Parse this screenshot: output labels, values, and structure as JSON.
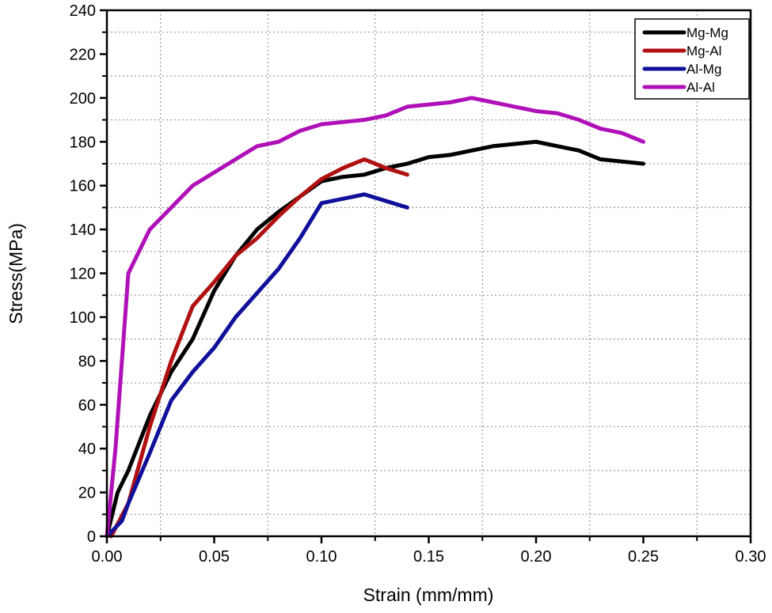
{
  "chart_data": {
    "type": "line",
    "title": "",
    "xlabel": "Strain (mm/mm)",
    "ylabel": "Stress(MPa)",
    "xlim": [
      0,
      0.3
    ],
    "ylim": [
      0,
      240
    ],
    "x_ticks": [
      "0.00",
      "0.05",
      "0.10",
      "0.15",
      "0.20",
      "0.25",
      "0.30"
    ],
    "y_ticks": [
      "0",
      "20",
      "40",
      "60",
      "80",
      "100",
      "120",
      "140",
      "160",
      "180",
      "200",
      "220",
      "240"
    ],
    "grid": "dotted, at minor ticks",
    "legend_position": "top-right",
    "series": [
      {
        "name": "Mg-Mg",
        "color": "#000000",
        "points": [
          [
            0,
            0
          ],
          [
            0.005,
            20
          ],
          [
            0.01,
            30
          ],
          [
            0.02,
            55
          ],
          [
            0.03,
            75
          ],
          [
            0.04,
            90
          ],
          [
            0.05,
            112
          ],
          [
            0.06,
            128
          ],
          [
            0.07,
            140
          ],
          [
            0.08,
            148
          ],
          [
            0.09,
            155
          ],
          [
            0.1,
            162
          ],
          [
            0.11,
            164
          ],
          [
            0.12,
            165
          ],
          [
            0.13,
            168
          ],
          [
            0.14,
            170
          ],
          [
            0.15,
            173
          ],
          [
            0.16,
            174
          ],
          [
            0.17,
            176
          ],
          [
            0.18,
            178
          ],
          [
            0.19,
            179
          ],
          [
            0.2,
            180
          ],
          [
            0.21,
            178
          ],
          [
            0.22,
            176
          ],
          [
            0.23,
            172
          ],
          [
            0.24,
            171
          ],
          [
            0.25,
            170
          ]
        ]
      },
      {
        "name": "Mg-Al",
        "color": "#b01010",
        "points": [
          [
            0.002,
            0
          ],
          [
            0.01,
            15
          ],
          [
            0.02,
            50
          ],
          [
            0.03,
            80
          ],
          [
            0.04,
            105
          ],
          [
            0.05,
            116
          ],
          [
            0.06,
            128
          ],
          [
            0.07,
            136
          ],
          [
            0.08,
            146
          ],
          [
            0.09,
            155
          ],
          [
            0.1,
            163
          ],
          [
            0.11,
            168
          ],
          [
            0.12,
            172
          ],
          [
            0.13,
            168
          ],
          [
            0.14,
            165
          ]
        ]
      },
      {
        "name": "Al-Mg",
        "color": "#10109a",
        "points": [
          [
            0,
            0
          ],
          [
            0.005,
            5
          ],
          [
            0.007,
            7
          ],
          [
            0.01,
            15
          ],
          [
            0.02,
            38
          ],
          [
            0.03,
            62
          ],
          [
            0.04,
            75
          ],
          [
            0.05,
            86
          ],
          [
            0.06,
            100
          ],
          [
            0.07,
            111
          ],
          [
            0.08,
            122
          ],
          [
            0.09,
            136
          ],
          [
            0.1,
            152
          ],
          [
            0.11,
            154
          ],
          [
            0.12,
            156
          ],
          [
            0.13,
            153
          ],
          [
            0.14,
            150
          ]
        ]
      },
      {
        "name": "Al-Al",
        "color": "#b010b8",
        "points": [
          [
            0,
            0
          ],
          [
            0.004,
            40
          ],
          [
            0.007,
            80
          ],
          [
            0.01,
            120
          ],
          [
            0.02,
            140
          ],
          [
            0.03,
            150
          ],
          [
            0.04,
            160
          ],
          [
            0.05,
            166
          ],
          [
            0.06,
            172
          ],
          [
            0.07,
            178
          ],
          [
            0.08,
            180
          ],
          [
            0.09,
            185
          ],
          [
            0.1,
            188
          ],
          [
            0.11,
            189
          ],
          [
            0.12,
            190
          ],
          [
            0.13,
            192
          ],
          [
            0.14,
            196
          ],
          [
            0.15,
            197
          ],
          [
            0.16,
            198
          ],
          [
            0.17,
            200
          ],
          [
            0.18,
            198
          ],
          [
            0.19,
            196
          ],
          [
            0.2,
            194
          ],
          [
            0.21,
            193
          ],
          [
            0.22,
            190
          ],
          [
            0.23,
            186
          ],
          [
            0.24,
            184
          ],
          [
            0.25,
            180
          ]
        ]
      }
    ]
  }
}
